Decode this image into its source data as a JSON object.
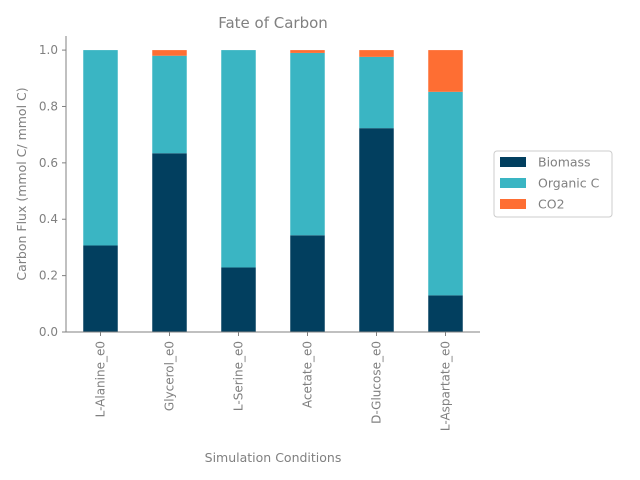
{
  "chart_data": {
    "type": "bar",
    "stacked": true,
    "title": "Fate of Carbon",
    "xlabel": "Simulation Conditions",
    "ylabel": "Carbon Flux (mmol C/ mmol C)",
    "ylim": [
      0,
      1.05
    ],
    "yticks": [
      0.0,
      0.2,
      0.4,
      0.6,
      0.8,
      1.0
    ],
    "ytick_labels": [
      "0.0",
      "0.2",
      "0.4",
      "0.6",
      "0.8",
      "1.0"
    ],
    "categories": [
      "L-Alanine_e0",
      "Glycerol_e0",
      "L-Serine_e0",
      "Acetate_e0",
      "D-Glucose_e0",
      "L-Aspartate_e0"
    ],
    "series": [
      {
        "name": "Biomass",
        "color": "#023f5f",
        "values": [
          0.307,
          0.634,
          0.229,
          0.343,
          0.723,
          0.13
        ]
      },
      {
        "name": "Organic C",
        "color": "#3ab5c3",
        "values": [
          0.693,
          0.346,
          0.771,
          0.647,
          0.253,
          0.722
        ]
      },
      {
        "name": "CO2",
        "color": "#fe6e33",
        "values": [
          0.0,
          0.02,
          0.0,
          0.01,
          0.024,
          0.148
        ]
      }
    ],
    "legend_position": "right",
    "grid": false
  }
}
